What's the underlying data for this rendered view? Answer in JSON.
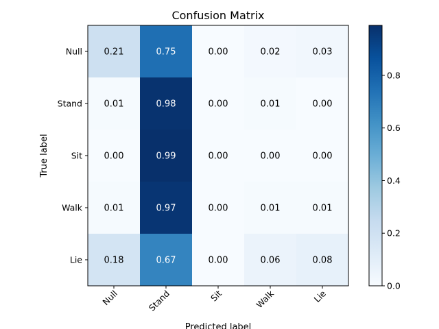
{
  "chart_data": {
    "type": "heatmap",
    "title": "Confusion Matrix",
    "xlabel": "Predicted label",
    "ylabel": "True label",
    "x_categories": [
      "Null",
      "Stand",
      "Sit",
      "Walk",
      "Lie"
    ],
    "y_categories": [
      "Null",
      "Stand",
      "Sit",
      "Walk",
      "Lie"
    ],
    "values": [
      [
        0.21,
        0.75,
        0.0,
        0.02,
        0.03
      ],
      [
        0.01,
        0.98,
        0.0,
        0.01,
        0.0
      ],
      [
        0.0,
        0.99,
        0.0,
        0.0,
        0.0
      ],
      [
        0.01,
        0.97,
        0.0,
        0.01,
        0.01
      ],
      [
        0.18,
        0.67,
        0.0,
        0.06,
        0.08
      ]
    ],
    "value_labels": [
      [
        "0.21",
        "0.75",
        "0.00",
        "0.02",
        "0.03"
      ],
      [
        "0.01",
        "0.98",
        "0.00",
        "0.01",
        "0.00"
      ],
      [
        "0.00",
        "0.99",
        "0.00",
        "0.00",
        "0.00"
      ],
      [
        "0.01",
        "0.97",
        "0.00",
        "0.01",
        "0.01"
      ],
      [
        "0.18",
        "0.67",
        "0.00",
        "0.06",
        "0.08"
      ]
    ],
    "colormap": "Blues",
    "colorbar": {
      "range": [
        0,
        0.99
      ],
      "ticks": [
        0.0,
        0.2,
        0.4,
        0.6,
        0.8
      ],
      "tick_labels": [
        "0.0",
        "0.2",
        "0.4",
        "0.6",
        "0.8"
      ]
    },
    "grid": false,
    "x_tick_rotation": 45
  }
}
